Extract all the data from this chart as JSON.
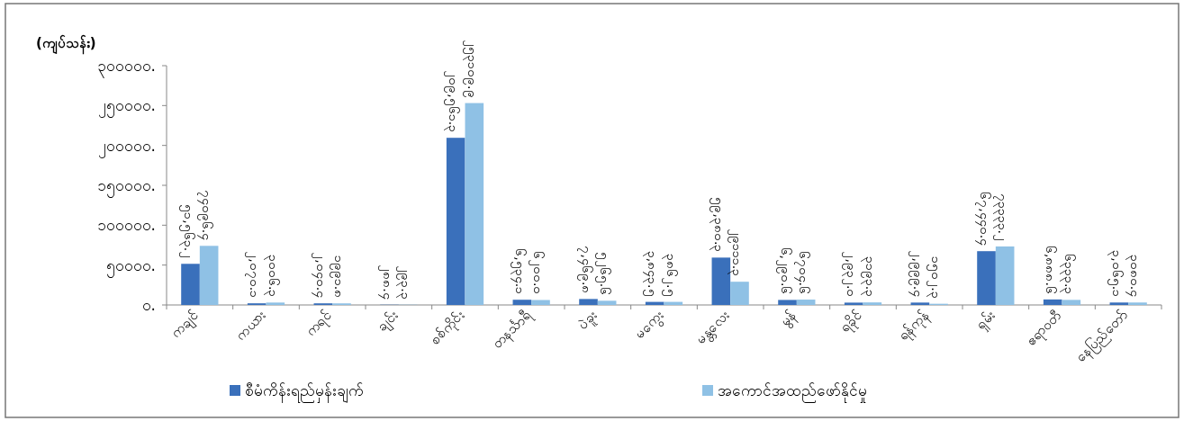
{
  "chart_data": {
    "type": "bar",
    "ylabel": "(ကျပ်သန်း)",
    "categories": [
      "ကချင်",
      "ကယား",
      "ကရင်",
      "ချင်း",
      "စစ်ကိုင်း",
      "တနင်္သာရီ",
      "ပဲခူး",
      "မကွေး",
      "မန္တလေး",
      "မွန်",
      "ရခိုင်",
      "ရန်ကုန်",
      "ရှမ်း",
      "ဧရာဝတီ",
      "နေပြည်တော်"
    ],
    "series": [
      {
        "name": "စီမံကိန်းရည်မှန်းချက်",
        "color": "#3a70bb",
        "values": [
          51563.2,
          2070.1,
          2040.4,
          288.4,
          209561.3,
          6534.1,
          7469.8,
          3843.5,
          59380.3,
          6290.6,
          2932.0,
          2999.4,
          67440.4,
          6888.6,
          3065.1
        ],
        "value_labels": [
          "၅၁,၅၆၃.၂",
          "၂,၀၇၀.၁",
          "၂,၀၄၀.၄",
          "၂၈၈.၄",
          "၂၀၉,၅၆၁.၃",
          "၆,၅၃၄.၁",
          "၇,၄၆၉.၈",
          "၃,၈၄၃.၅",
          "၅၉,၃၈၀.၃",
          "၆,၂၉၀.၆",
          "၂,၉၃၂.၀",
          "၂,၉၉၉.၄",
          "၆၇,၄၄၀.၄",
          "၆,၈၈၈.၆",
          "၃,၀၆၅.၁"
        ]
      },
      {
        "name": "အကောင်အထည်ဖော်နိုင်မှု",
        "color": "#8fc1e5",
        "values": [
          74096.4,
          3006.3,
          1991.8,
          293.3,
          253109.9,
          6200.0,
          5265.6,
          3862.5,
          29111.3,
          6704.6,
          3193.3,
          1502.3,
          73333.2,
          6333.3,
          3080.4
        ],
        "value_labels": [
          "၇၄၀၉၆.၄",
          "၃၀၀၆.၃",
          "၁၉၉၁.၈",
          "၂၉၃.၃",
          "၂၅၃၁၀၉.၉",
          "၆၂၀၀.၀",
          "၅၂၆၅.၆",
          "၃၈၆၂.၅",
          "၂၉၁၁၁.၃",
          "၆၇၀၄.၆",
          "၃၁၉၃.၃",
          "၁၅၀၂.၃",
          "၇၃၃၃၃.၂",
          "၆၃၃၃.၃",
          "၃၀၈၀.၄"
        ]
      }
    ],
    "ylim": [
      0,
      300000
    ],
    "yticks": [
      {
        "value": 0,
        "label": "၀."
      },
      {
        "value": 50000,
        "label": "၅၀၀၀၀."
      },
      {
        "value": 100000,
        "label": "၁၀၀၀၀၀."
      },
      {
        "value": 150000,
        "label": "၁၅၀၀၀၀."
      },
      {
        "value": 200000,
        "label": "၂၀၀၀၀၀."
      },
      {
        "value": 250000,
        "label": "၂၅၀၀၀၀."
      },
      {
        "value": 300000,
        "label": "၃၀၀၀၀၀."
      }
    ],
    "grid": false,
    "legend": "bottom"
  }
}
